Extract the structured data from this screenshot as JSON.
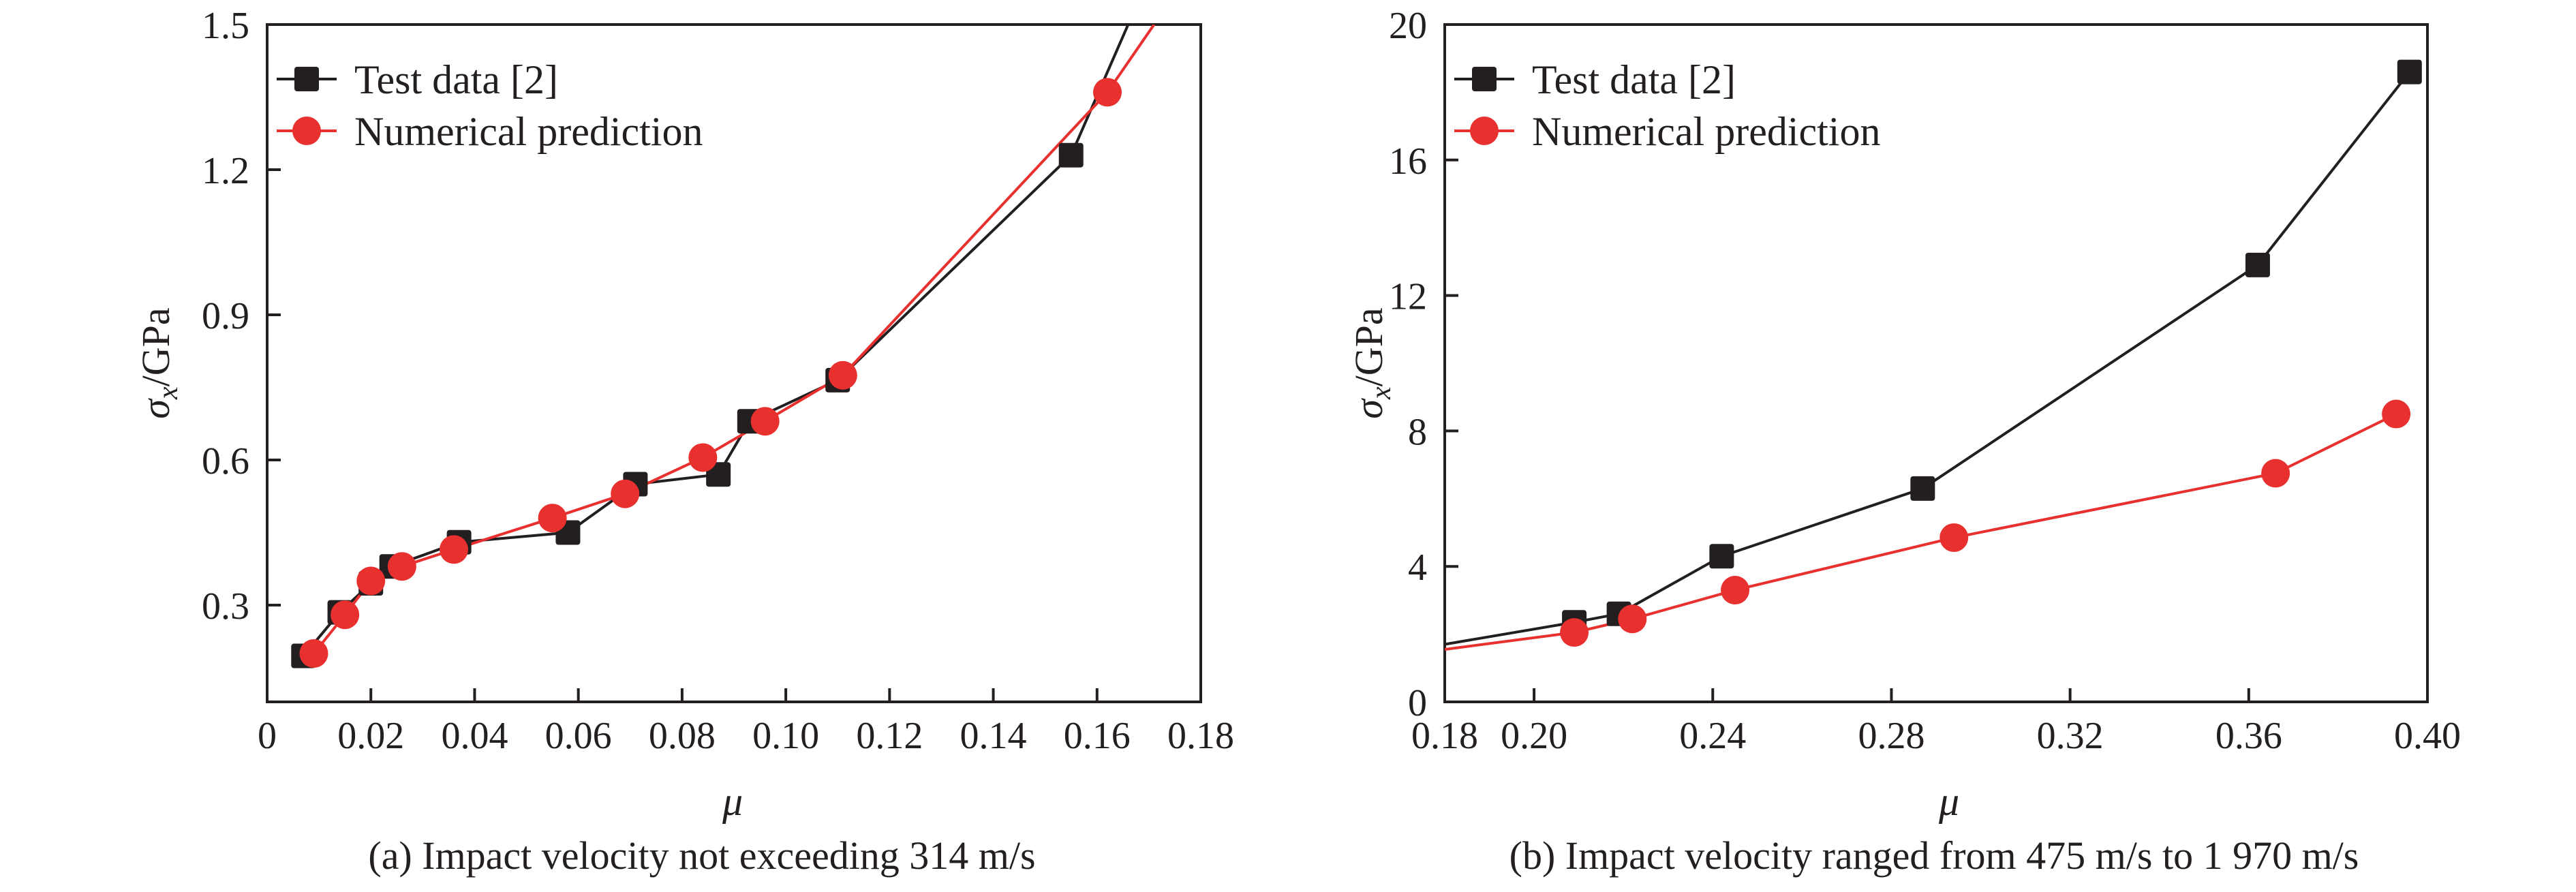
{
  "chart_data": [
    {
      "type": "line",
      "caption": "(a) Impact velocity not exceeding 314 m/s",
      "xlabel": "μ",
      "ylabel": {
        "symbol": "σ",
        "subscript": "x",
        "unit": "/GPa"
      },
      "xlim": [
        0,
        0.18
      ],
      "ylim": [
        0.1,
        1.5
      ],
      "xticks": [
        0,
        0.02,
        0.04,
        0.06,
        0.08,
        0.1,
        0.12,
        0.14,
        0.16,
        0.18
      ],
      "xtick_labels": [
        "0",
        "0.02",
        "0.04",
        "0.06",
        "0.08",
        "0.10",
        "0.12",
        "0.14",
        "0.16",
        "0.18"
      ],
      "yticks": [
        0.3,
        0.6,
        0.9,
        1.2,
        1.5
      ],
      "ytick_labels": [
        "0.3",
        "0.6",
        "0.9",
        "1.2",
        "1.5"
      ],
      "legend_position": "top-left",
      "grid": false,
      "series": [
        {
          "name": "Test data [2]",
          "color": "#231f20",
          "marker": "square",
          "x": [
            0.007,
            0.014,
            0.02,
            0.024,
            0.037,
            0.058,
            0.071,
            0.087,
            0.093,
            0.11,
            0.155
          ],
          "y": [
            0.195,
            0.285,
            0.345,
            0.38,
            0.43,
            0.45,
            0.55,
            0.57,
            0.68,
            0.765,
            1.23
          ],
          "line_extension": {
            "x": [
              0.155,
              0.166
            ],
            "y": [
              1.23,
              1.5
            ]
          }
        },
        {
          "name": "Numerical prediction",
          "color": "#e8302f",
          "marker": "circle",
          "x": [
            0.009,
            0.015,
            0.02,
            0.026,
            0.036,
            0.055,
            0.069,
            0.084,
            0.096,
            0.111,
            0.162
          ],
          "y": [
            0.2,
            0.28,
            0.35,
            0.38,
            0.415,
            0.48,
            0.53,
            0.605,
            0.68,
            0.775,
            1.36
          ],
          "line_extension": {
            "x": [
              0.162,
              0.171
            ],
            "y": [
              1.36,
              1.5
            ]
          }
        }
      ]
    },
    {
      "type": "line",
      "caption": "(b) Impact velocity ranged from 475 m/s to 1 970 m/s",
      "xlabel": "μ",
      "ylabel": {
        "symbol": "σ",
        "subscript": "x",
        "unit": "/GPa"
      },
      "xlim": [
        0.18,
        0.4
      ],
      "ylim": [
        0,
        20
      ],
      "xticks": [
        0.18,
        0.2,
        0.24,
        0.28,
        0.32,
        0.36,
        0.4
      ],
      "xtick_labels": [
        "0.18",
        "0.20",
        "0.24",
        "0.28",
        "0.32",
        "0.36",
        "0.40"
      ],
      "yticks": [
        0,
        4,
        8,
        12,
        16,
        20
      ],
      "ytick_labels": [
        "0",
        "4",
        "8",
        "12",
        "16",
        "20"
      ],
      "legend_position": "top-left",
      "grid": false,
      "series": [
        {
          "name": "Test data [2]",
          "color": "#231f20",
          "marker": "square",
          "x": [
            0.209,
            0.219,
            0.242,
            0.287,
            0.362,
            0.396
          ],
          "y": [
            2.35,
            2.6,
            4.3,
            6.3,
            12.9,
            18.6
          ],
          "line_start": {
            "x": 0.18,
            "y": 1.7
          }
        },
        {
          "name": "Numerical prediction",
          "color": "#e8302f",
          "marker": "circle",
          "x": [
            0.209,
            0.222,
            0.245,
            0.294,
            0.366,
            0.393
          ],
          "y": [
            2.05,
            2.45,
            3.3,
            4.85,
            6.75,
            8.5
          ],
          "line_start": {
            "x": 0.18,
            "y": 1.55
          }
        }
      ]
    }
  ]
}
